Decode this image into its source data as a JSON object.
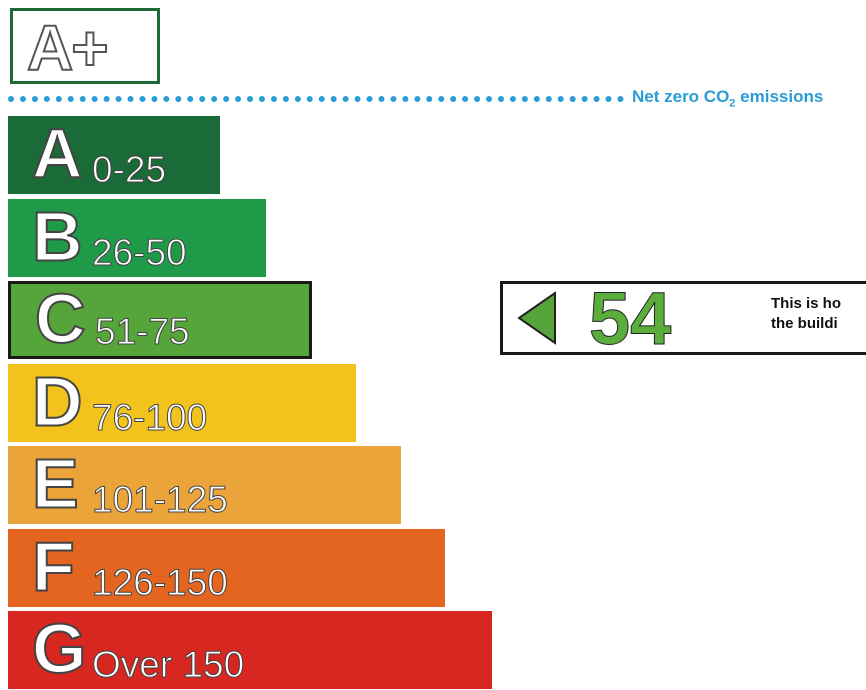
{
  "header": {
    "top_rating": "A+"
  },
  "net_zero": {
    "label_prefix": "Net zero CO",
    "label_sub": "2",
    "label_suffix": " emissions"
  },
  "bands": [
    {
      "letter": "A",
      "range": "0-25",
      "color": "#1b6b38"
    },
    {
      "letter": "B",
      "range": "26-50",
      "color": "#1f9a48"
    },
    {
      "letter": "C",
      "range": "51-75",
      "color": "#56a53a"
    },
    {
      "letter": "D",
      "range": "76-100",
      "color": "#f1c31c"
    },
    {
      "letter": "E",
      "range": "101-125",
      "color": "#eba43a"
    },
    {
      "letter": "F",
      "range": "126-150",
      "color": "#e3651f"
    },
    {
      "letter": "G",
      "range": "Over 150",
      "color": "#d72720"
    }
  ],
  "current": {
    "band": "C",
    "value": "54",
    "desc_line1": "This is ho",
    "desc_line2": "the buildi"
  }
}
